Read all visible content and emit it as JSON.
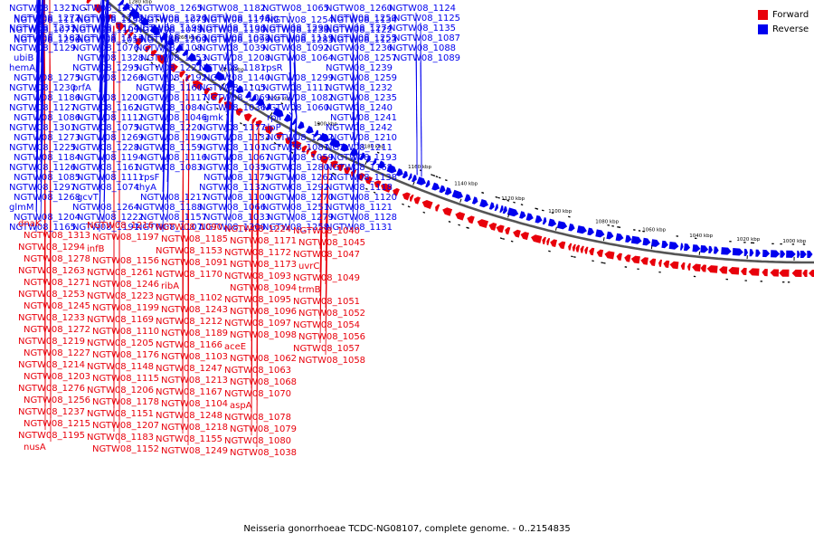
{
  "legend": [
    {
      "label": "Forward",
      "color": "#e8000b"
    },
    {
      "label": "Reverse",
      "color": "#0000ee"
    }
  ],
  "caption": "Neisseria gonorrhoeae TCDC-NG08107, complete genome. - 0..2154835",
  "colors": {
    "forward": "#e8000b",
    "reverse": "#0000ee",
    "backbone": "#555555"
  },
  "ticks": [
    "1000 kbp",
    "1020 kbp",
    "1040 kbp",
    "1060 kbp",
    "1080 kbp",
    "1100 kbp",
    "1120 kbp",
    "1140 kbp",
    "1160 kbp",
    "1180 kbp",
    "1200 kbp",
    "1220 kbp",
    "1240 kbp",
    "1260 kbp",
    "1280 kbp",
    "1300 kbp",
    "1320 kbp",
    "1340 kbp"
  ],
  "reverse_labels": [
    "NGTW08_1321",
    "NGTW08_1277",
    "NGTW08_1231",
    "NGTW08_1187",
    "NGTW08_1129",
    "ubiB",
    "hemA",
    "NGTW08_1275",
    "NGTW08_1230",
    "NGTW08_1186",
    "NGTW08_1127",
    "NGTW08_1086",
    "NGTW08_1301",
    "NGTW08_1273",
    "NGTW08_1225",
    "NGTW08_1184",
    "NGTW08_1126",
    "NGTW08_1085",
    "NGTW08_1297",
    "NGTW08_1268",
    "glmM",
    "NGTW08_1204",
    "NGTW08_1165",
    "NGTW08_1114",
    "NGTW08_1077",
    "NGTW08_1296",
    "NGTW08_1267",
    "NGTW08_1201",
    "NGTW08_1164",
    "NGTW08_1113",
    "NGTW08_1076",
    "NGTW08_1328",
    "NGTW08_1295",
    "NGTW08_1266",
    "prfA",
    "NGTW08_1200",
    "NGTW08_1162",
    "NGTW08_1112",
    "NGTW08_1075",
    "NGTW08_1269",
    "NGTW08_1228",
    "NGTW08_1194",
    "NGTW08_1161",
    "NGTW08_1111",
    "NGTW08_1074",
    "gcvT",
    "NGTW08_1264",
    "NGTW08_1222",
    "NGTW08_1191",
    "NGTW08_1158",
    "NGTW08_1109",
    "NGTW08_1055",
    "NGTW08_1265",
    "NGTW08_1226",
    "NGTW08_1198",
    "NGTW08_1163",
    "NGTW08_1108",
    "NGTW08_1053",
    "NGTW08_1221",
    "NGTW08_1192",
    "NGTW08_1160",
    "NGTW08_1117",
    "NGTW08_1084",
    "NGTW08_1046",
    "NGTW08_1220",
    "NGTW08_1190",
    "NGTW08_1159",
    "NGTW08_1116",
    "NGTW08_1083",
    "rpsF",
    "thyA",
    "NGTW08_1217",
    "NGTW08_1188",
    "NGTW08_1157",
    "NGTW08_1107",
    "NGTW08_1073",
    "NGTW08_1043",
    "NGTW08_1209",
    "NGTW08_1182",
    "NGTW08_1146",
    "NGTW08_1106",
    "NGTW08_1072",
    "NGTW08_1039",
    "NGTW08_1208",
    "NGTW08_1181",
    "NGTW08_1140",
    "NGTW08_1105",
    "NGTW08_1069",
    "NGTW08_1036",
    "gmk",
    "NGTW08_1177",
    "NGTW08_1133",
    "NGTW08_1101",
    "NGTW08_1067",
    "NGTW08_1035",
    "NGTW08_1175",
    "NGTW08_1132",
    "NGTW08_1100",
    "NGTW08_1066",
    "NGTW08_1033",
    "NGTW08_1300",
    "NGTW08_1174",
    "NGTW08_1130",
    "NGTW08_1099",
    "NGTW08_1065",
    "tig",
    "NGTW08_1290",
    "NGTW08_1119",
    "NGTW08_1092",
    "NGTW08_1064",
    "rpsR",
    "NGTW08_1299",
    "NGTW08_1111",
    "NGTW08_1082",
    "NGTW08_1060",
    "rplI",
    "clpP",
    "NGTW08_1282",
    "NGTW08_1081",
    "NGTW08_1059",
    "NGTW08_1280",
    "NGTW08_1262",
    "NGTW08_1292",
    "NGTW08_1270",
    "NGTW08_1251",
    "NGTW08_1279",
    "NGTW08_1258",
    "NGTW08_1254",
    "NGTW08_1238",
    "NGTW08_1283",
    "NGTW08_1260",
    "NGTW08_1250",
    "NGTW08_1274",
    "NGTW08_1255",
    "NGTW08_1236",
    "NGTW08_1257",
    "NGTW08_1239",
    "NGTW08_1259",
    "NGTW08_1232",
    "NGTW08_1235",
    "NGTW08_1240",
    "NGTW08_1241",
    "NGTW08_1242",
    "NGTW08_1210",
    "NGTW08_1211",
    "NGTW08_1193",
    "NGTW08_1168",
    "NGTW08_1138",
    "NGTW08_1118",
    "NGTW08_1120",
    "NGTW08_1121",
    "NGTW08_1128",
    "NGTW08_1131",
    "NGTW08_1134",
    "NGTW08_1122",
    "NGTW08_1123",
    "NGTW08_1124",
    "NGTW08_1125",
    "NGTW08_1135",
    "NGTW08_1087",
    "NGTW08_1088",
    "NGTW08_1089"
  ],
  "forward_labels": [
    "dnaK",
    "NGTW08_1313",
    "NGTW08_1294",
    "NGTW08_1278",
    "NGTW08_1263",
    "NGTW08_1271",
    "NGTW08_1253",
    "NGTW08_1245",
    "NGTW08_1233",
    "NGTW08_1272",
    "NGTW08_1219",
    "NGTW08_1227",
    "NGTW08_1214",
    "NGTW08_1203",
    "NGTW08_1276",
    "NGTW08_1256",
    "NGTW08_1237",
    "NGTW08_1215",
    "NGTW08_1195",
    "nusA",
    "NGTW08_1216",
    "NGTW08_1197",
    "infB",
    "NGTW08_1156",
    "NGTW08_1261",
    "NGTW08_1246",
    "NGTW08_1223",
    "NGTW08_1199",
    "NGTW08_1169",
    "NGTW08_1110",
    "NGTW08_1205",
    "NGTW08_1176",
    "NGTW08_1148",
    "NGTW08_1115",
    "NGTW08_1206",
    "NGTW08_1178",
    "NGTW08_1151",
    "NGTW08_1207",
    "NGTW08_1183",
    "NGTW08_1152",
    "NGTW08_1090",
    "NGTW08_1185",
    "NGTW08_1153",
    "NGTW08_1091",
    "NGTW08_1170",
    "ribA",
    "NGTW08_1102",
    "NGTW08_1243",
    "NGTW08_1212",
    "NGTW08_1189",
    "NGTW08_1166",
    "NGTW08_1103",
    "NGTW08_1247",
    "NGTW08_1213",
    "NGTW08_1167",
    "NGTW08_1104",
    "NGTW08_1248",
    "NGTW08_1218",
    "NGTW08_1155",
    "NGTW08_1249",
    "NGTW08_1224",
    "NGTW08_1171",
    "NGTW08_1172",
    "NGTW08_1173",
    "NGTW08_1093",
    "NGTW08_1094",
    "NGTW08_1095",
    "NGTW08_1096",
    "NGTW08_1097",
    "NGTW08_1098",
    "aceE",
    "NGTW08_1062",
    "NGTW08_1063",
    "NGTW08_1068",
    "NGTW08_1070",
    "aspA",
    "NGTW08_1078",
    "NGTW08_1079",
    "NGTW08_1080",
    "NGTW08_1038",
    "NGTW08_1040",
    "NGTW08_1045",
    "NGTW08_1047",
    "uvrC",
    "NGTW08_1049",
    "trmB",
    "NGTW08_1051",
    "NGTW08_1052",
    "NGTW08_1054",
    "NGTW08_1056",
    "NGTW08_1057",
    "NGTW08_1058"
  ]
}
